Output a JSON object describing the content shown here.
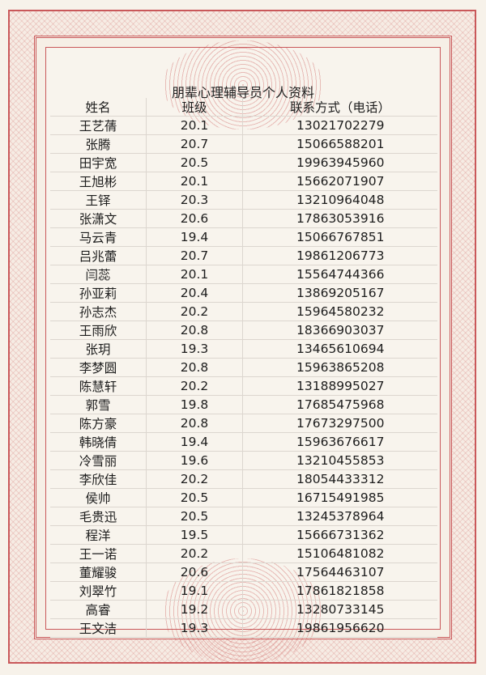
{
  "title": "朋辈心理辅导员个人资料",
  "headers": [
    "姓名",
    "班级",
    "联系方式（电话）"
  ],
  "rows": [
    [
      "王艺蒨",
      "20.1",
      "13021702279"
    ],
    [
      "张腾",
      "20.7",
      "15066588201"
    ],
    [
      "田宇宽",
      "20.5",
      "19963945960"
    ],
    [
      "王旭彬",
      "20.1",
      "15662071907"
    ],
    [
      "王铎",
      "20.3",
      "13210964048"
    ],
    [
      "张潇文",
      "20.6",
      "17863053916"
    ],
    [
      "马云青",
      "19.4",
      "15066767851"
    ],
    [
      "吕兆蕾",
      "20.7",
      "19861206773"
    ],
    [
      "闫蕊",
      "20.1",
      "15564744366"
    ],
    [
      "孙亚莉",
      "20.4",
      "13869205167"
    ],
    [
      "孙志杰",
      "20.2",
      "15964580232"
    ],
    [
      "王雨欣",
      "20.8",
      "18366903037"
    ],
    [
      "张玥",
      "19.3",
      "13465610694"
    ],
    [
      "李梦圆",
      "20.8",
      "15963865208"
    ],
    [
      "陈慧轩",
      "20.2",
      "13188995027"
    ],
    [
      "郭雪",
      "19.8",
      "17685475968"
    ],
    [
      "陈方豪",
      "20.8",
      "17673297500"
    ],
    [
      "韩晓倩",
      "19.4",
      "15963676617"
    ],
    [
      "冷雪丽",
      "19.6",
      "13210455853"
    ],
    [
      "李欣佳",
      "20.2",
      "18054433312"
    ],
    [
      "侯帅",
      "20.5",
      "16715491985"
    ],
    [
      "毛贵迅",
      "20.5",
      "13245378964"
    ],
    [
      "程洋",
      "19.5",
      "15666731362"
    ],
    [
      "王一诺",
      "20.2",
      "15106481082"
    ],
    [
      "董耀骏",
      "20.6",
      "17564463107"
    ],
    [
      "刘翠竹",
      "19.1",
      "17861821858"
    ],
    [
      "高睿",
      "19.2",
      "13280733145"
    ],
    [
      "王文洁",
      "19.3",
      "19861956620"
    ]
  ],
  "colors": {
    "border": "#c9585a",
    "paper": "#f8f4ed"
  }
}
